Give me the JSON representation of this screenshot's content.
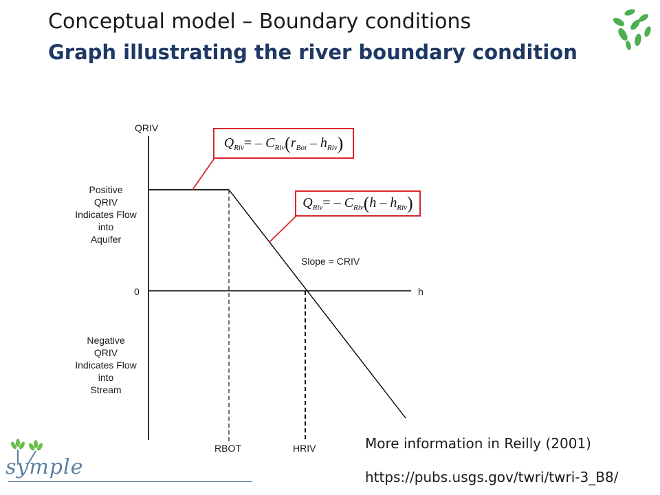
{
  "slide": {
    "title": "Conceptual model – Boundary conditions",
    "subtitle": "Graph illustrating the river boundary condition"
  },
  "graph": {
    "y_axis_label": "QRIV",
    "x_axis_label": "h",
    "zero_label": "0",
    "positive_region": [
      "Positive",
      "QRIV",
      "Indicates Flow",
      "into",
      "Aquifer"
    ],
    "negative_region": [
      "Negative",
      "QRIV",
      "Indicates Flow",
      "into",
      "Stream"
    ],
    "x_marks": [
      "RBOT",
      "HRIV"
    ],
    "slope_label": "Slope = CRIV",
    "equation_upper": {
      "lhs": "Q",
      "lhs_sub": "Riv",
      "equals_minus": "= –",
      "coef": "C",
      "coef_sub": "Riv",
      "term1": "r",
      "term1_sub": "Bot",
      "minus": "–",
      "term2": "h",
      "term2_sub": "Riv"
    },
    "equation_lower": {
      "lhs": "Q",
      "lhs_sub": "Riv",
      "equals_minus": "= –",
      "coef": "C",
      "coef_sub": "Riv",
      "term1": "h",
      "minus": "–",
      "term2": "h",
      "term2_sub": "Riv"
    },
    "colors": {
      "callout": "#d9262c",
      "line": "#000000"
    }
  },
  "footer": {
    "reference_text": "More information in Reilly (2001)",
    "url": "https://pubs.usgs.gov/twri/twri-3_B8/",
    "logo_text": "symple"
  },
  "colors": {
    "title": "#1a1a1a",
    "subtitle": "#1f3864",
    "leaf": "#4caf50",
    "logo": "#5c7fa3"
  }
}
